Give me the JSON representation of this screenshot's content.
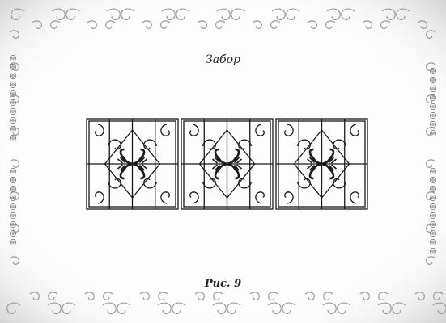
{
  "document": {
    "title": "Забор",
    "caption": "Рис. 9"
  },
  "figure": {
    "panel_count": 3,
    "cells_per_panel": 4
  },
  "colors": {
    "frame_ornament": "#b8b8b8",
    "frame_light": "#dcdcdc",
    "ink": "#1a1a1a",
    "background": "#fdfdfd"
  }
}
